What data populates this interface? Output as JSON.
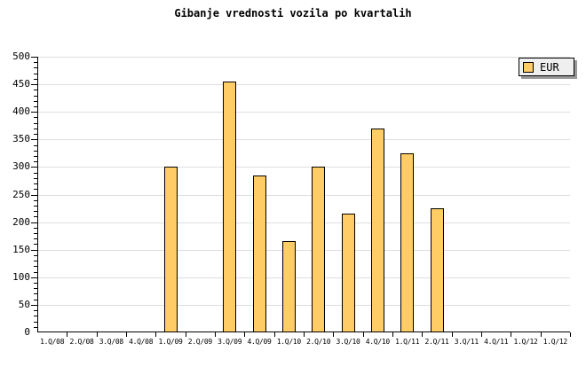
{
  "title": "Gibanje vrednosti vozila po kvartalih",
  "legend": {
    "label": "EUR",
    "position": "top-right"
  },
  "colors": {
    "background": "#FFFFFF",
    "bar_fill": "#FFCC66",
    "bar_border": "#000000",
    "gridline": "#DEDEDE",
    "axis": "#000000",
    "text": "#000000",
    "legend_bg": "#EFEFEF",
    "legend_shadow": "#999999"
  },
  "y_axis": {
    "tick_labels": [
      "0",
      "50",
      "100",
      "150",
      "200",
      "250",
      "300",
      "350",
      "400",
      "450",
      "500"
    ]
  },
  "chart_data": {
    "type": "bar",
    "title": "Gibanje vrednosti vozila po kvartalih",
    "categories": [
      "1.Q/08",
      "2.Q/08",
      "3.Q/08",
      "4.Q/08",
      "1.Q/09",
      "2.Q/09",
      "3.Q/09",
      "4.Q/09",
      "1.Q/10",
      "2.Q/10",
      "3.Q/10",
      "4.Q/10",
      "1.Q/11",
      "2.Q/11",
      "3.Q/11",
      "4.Q/11",
      "1.Q/12",
      "1.Q/12"
    ],
    "series": [
      {
        "name": "EUR",
        "values": [
          null,
          null,
          null,
          null,
          300,
          null,
          455,
          285,
          165,
          300,
          215,
          370,
          325,
          225,
          null,
          null,
          null,
          null
        ]
      }
    ],
    "xlabel": "",
    "ylabel": "",
    "ylim": [
      0,
      500
    ],
    "y_major_step": 50,
    "y_minor_step": 10,
    "grid": "horizontal-major",
    "legend_position": "top-right"
  }
}
